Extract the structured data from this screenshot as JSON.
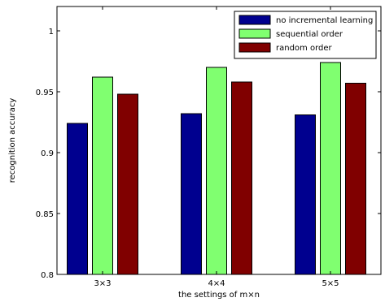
{
  "chart_data": {
    "type": "bar",
    "title": "",
    "xlabel": "the settings of m×n",
    "ylabel": "recognition accuracy",
    "categories": [
      "3×3",
      "4×4",
      "5×5"
    ],
    "ylim": [
      0.8,
      1.02
    ],
    "yticks": [
      0.8,
      0.85,
      0.9,
      0.95,
      1
    ],
    "ytick_labels": [
      "0.8",
      "0.85",
      "0.9",
      "0.95",
      "1"
    ],
    "grid": false,
    "legend_position": "top-right",
    "series": [
      {
        "name": "no incremental learning",
        "color": "#00008f",
        "values": [
          0.924,
          0.932,
          0.931
        ]
      },
      {
        "name": "sequential order",
        "color": "#80ff70",
        "values": [
          0.962,
          0.97,
          0.974
        ]
      },
      {
        "name": "random order",
        "color": "#800000",
        "values": [
          0.948,
          0.958,
          0.957
        ]
      }
    ]
  }
}
